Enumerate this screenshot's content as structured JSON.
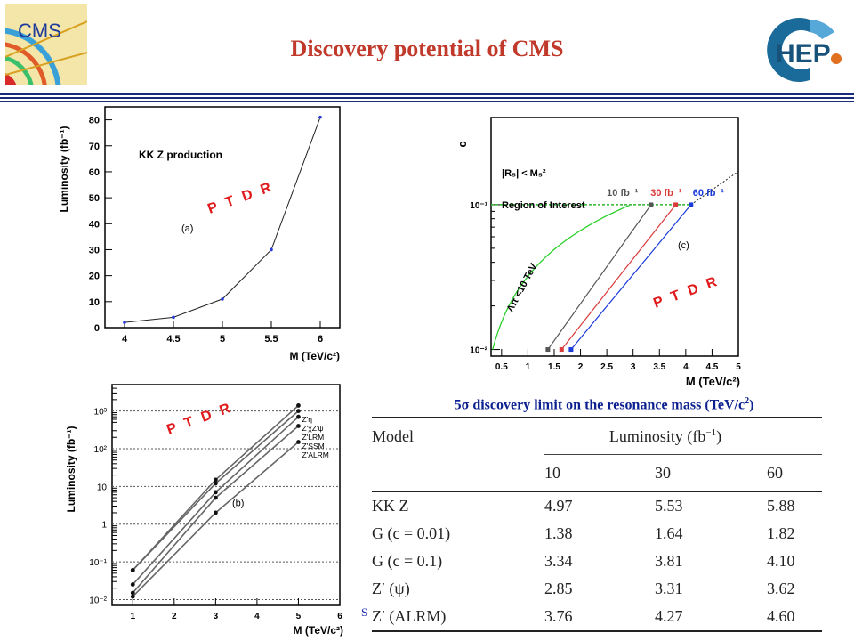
{
  "slide": {
    "title": "Discovery potential of CMS",
    "cms_logo_text": "CMS",
    "hep_logo_text": "HEP",
    "stamp": "P T D R",
    "footnote": "S"
  },
  "colors": {
    "title": "#c0392b",
    "caption": "#0b1f8f",
    "stamp": "#e0191b"
  },
  "chart_data": [
    {
      "type": "line",
      "title": "KK Z production",
      "panel_label": "(a)",
      "xlabel": "M (TeV/c²)",
      "ylabel": "Luminosity (fb⁻¹)",
      "xlim": [
        3.8,
        6.2
      ],
      "ylim": [
        0,
        85
      ],
      "xticks": [
        "4",
        "4.5",
        "5",
        "5.5",
        "6"
      ],
      "yticks": [
        "0",
        "10",
        "20",
        "30",
        "40",
        "50",
        "60",
        "70",
        "80"
      ],
      "x": [
        4.0,
        4.5,
        5.0,
        5.5,
        6.0
      ],
      "y": [
        2,
        4,
        11,
        30,
        81
      ]
    },
    {
      "type": "line",
      "panel_label": "(c)",
      "xlabel": "M (TeV/c²)",
      "ylabel": "c",
      "xscale": "linear",
      "yscale": "log",
      "xlim": [
        0.3,
        5
      ],
      "ylim": [
        0.009,
        0.4
      ],
      "xticks": [
        "0.5",
        "1",
        "1.5",
        "2",
        "2.5",
        "3",
        "3.5",
        "4",
        "4.5",
        "5"
      ],
      "yticks": [
        "10⁻²",
        "10⁻¹"
      ],
      "annotations": [
        "|R₅| < M₅²",
        "Region of Interest",
        "Λπ <10 TeV"
      ],
      "series": [
        {
          "name": "10 fb⁻¹",
          "color": "#555555",
          "x": [
            1.38,
            3.34
          ],
          "y": [
            0.01,
            0.1
          ]
        },
        {
          "name": "30 fb⁻¹",
          "color": "#d93a3a",
          "x": [
            1.64,
            3.81
          ],
          "y": [
            0.01,
            0.1
          ]
        },
        {
          "name": "60 fb⁻¹",
          "color": "#1a3ad9",
          "x": [
            1.82,
            4.1
          ],
          "y": [
            0.01,
            0.1
          ]
        }
      ]
    },
    {
      "type": "line",
      "panel_label": "(b)",
      "xlabel": "M (TeV/c²)",
      "ylabel": "Luminosity (fb⁻¹)",
      "xscale": "linear",
      "yscale": "log",
      "xlim": [
        0.5,
        6
      ],
      "ylim": [
        0.007,
        5000
      ],
      "xticks": [
        "1",
        "2",
        "3",
        "4",
        "5",
        "6"
      ],
      "yticks": [
        "10⁻²",
        "10⁻¹",
        "1",
        "10",
        "10²",
        "10³"
      ],
      "legend": [
        "Z'η",
        "Z'χZ'ψ",
        "Z'LRM",
        "Z'SSM",
        "Z'ALRM"
      ],
      "series": [
        {
          "x": [
            1,
            3,
            5
          ],
          "y": [
            0.06,
            15,
            1400
          ]
        },
        {
          "x": [
            1,
            3,
            5
          ],
          "y": [
            0.06,
            12,
            1000
          ]
        },
        {
          "x": [
            1,
            3,
            5
          ],
          "y": [
            0.025,
            7,
            700
          ]
        },
        {
          "x": [
            1,
            3,
            5
          ],
          "y": [
            0.015,
            5,
            400
          ]
        },
        {
          "x": [
            1,
            3,
            5
          ],
          "y": [
            0.012,
            2,
            150
          ]
        }
      ]
    }
  ],
  "table": {
    "caption_prefix": "5",
    "caption_sigma": "σ",
    "caption_rest": " discovery limit on the resonance mass (TeV/c",
    "caption_sup": "2",
    "caption_end": ")",
    "header_model": "Model",
    "header_lumi": "Luminosity (fb",
    "header_lumi_sup": "−1",
    "header_lumi_end": ")",
    "columns": [
      "10",
      "30",
      "60"
    ],
    "rows": [
      {
        "model": "KK Z",
        "values": [
          "4.97",
          "5.53",
          "5.88"
        ]
      },
      {
        "model": "G (c = 0.01)",
        "values": [
          "1.38",
          "1.64",
          "1.82"
        ]
      },
      {
        "model": "G (c = 0.1)",
        "values": [
          "3.34",
          "3.81",
          "4.10"
        ]
      },
      {
        "model": "Z′ (ψ)",
        "values": [
          "2.85",
          "3.31",
          "3.62"
        ]
      },
      {
        "model": "Z′ (ALRM)",
        "values": [
          "3.76",
          "4.27",
          "4.60"
        ]
      }
    ]
  }
}
